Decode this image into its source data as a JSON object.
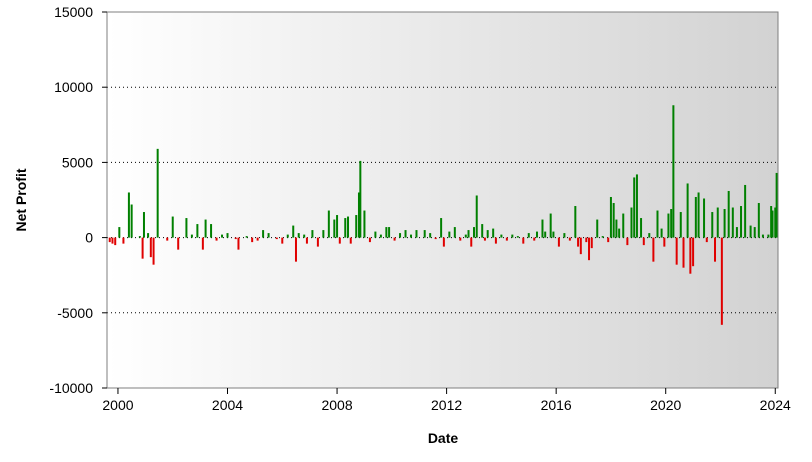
{
  "chart_data": {
    "type": "bar",
    "title": "",
    "xlabel": "Date",
    "ylabel": "Net Profit",
    "xlim": [
      1999.6,
      2024.1
    ],
    "ylim": [
      -10000,
      15000
    ],
    "y_ticks": [
      -10000,
      -5000,
      0,
      5000,
      10000,
      15000
    ],
    "x_ticks": [
      2000,
      2004,
      2008,
      2012,
      2016,
      2020,
      2024
    ],
    "y_tick_labels": [
      "-10000",
      "-5000",
      "0",
      "5000",
      "10000",
      "15000"
    ],
    "x_tick_labels": [
      "2000",
      "2004",
      "2008",
      "2012",
      "2016",
      "2020",
      "2024"
    ],
    "grid": "horizontal dotted",
    "colors": {
      "positive": "#008000",
      "negative": "#e00000"
    },
    "series": [
      {
        "points": [
          [
            1999.7,
            -300
          ],
          [
            1999.8,
            -400
          ],
          [
            1999.9,
            -500
          ],
          [
            2000.05,
            700
          ],
          [
            2000.2,
            -400
          ],
          [
            2000.4,
            3000
          ],
          [
            2000.5,
            2200
          ],
          [
            2000.8,
            100
          ],
          [
            2000.9,
            -1400
          ],
          [
            2000.95,
            1700
          ],
          [
            2001.1,
            300
          ],
          [
            2001.2,
            -1300
          ],
          [
            2001.3,
            -1800
          ],
          [
            2001.45,
            5900
          ],
          [
            2001.8,
            -200
          ],
          [
            2002.0,
            1400
          ],
          [
            2002.2,
            -800
          ],
          [
            2002.5,
            1300
          ],
          [
            2002.7,
            200
          ],
          [
            2002.9,
            900
          ],
          [
            2003.1,
            -800
          ],
          [
            2003.2,
            1200
          ],
          [
            2003.4,
            900
          ],
          [
            2003.6,
            -200
          ],
          [
            2003.8,
            200
          ],
          [
            2004.0,
            300
          ],
          [
            2004.3,
            -100
          ],
          [
            2004.4,
            -800
          ],
          [
            2004.7,
            100
          ],
          [
            2004.9,
            -300
          ],
          [
            2005.1,
            -200
          ],
          [
            2005.3,
            500
          ],
          [
            2005.5,
            300
          ],
          [
            2005.8,
            -100
          ],
          [
            2006.0,
            -400
          ],
          [
            2006.2,
            200
          ],
          [
            2006.4,
            800
          ],
          [
            2006.5,
            -1600
          ],
          [
            2006.6,
            300
          ],
          [
            2006.8,
            200
          ],
          [
            2006.9,
            -400
          ],
          [
            2007.1,
            500
          ],
          [
            2007.3,
            -600
          ],
          [
            2007.5,
            500
          ],
          [
            2007.7,
            1800
          ],
          [
            2007.9,
            1200
          ],
          [
            2008.0,
            1500
          ],
          [
            2008.1,
            -400
          ],
          [
            2008.3,
            1300
          ],
          [
            2008.4,
            1400
          ],
          [
            2008.5,
            -400
          ],
          [
            2008.7,
            1500
          ],
          [
            2008.8,
            3000
          ],
          [
            2008.85,
            5100
          ],
          [
            2009.0,
            1800
          ],
          [
            2009.2,
            -300
          ],
          [
            2009.4,
            400
          ],
          [
            2009.6,
            200
          ],
          [
            2009.8,
            700
          ],
          [
            2009.9,
            700
          ],
          [
            2010.1,
            -200
          ],
          [
            2010.3,
            300
          ],
          [
            2010.5,
            500
          ],
          [
            2010.7,
            200
          ],
          [
            2010.9,
            500
          ],
          [
            2011.2,
            500
          ],
          [
            2011.4,
            300
          ],
          [
            2011.6,
            -100
          ],
          [
            2011.8,
            1300
          ],
          [
            2011.9,
            -600
          ],
          [
            2012.1,
            400
          ],
          [
            2012.3,
            700
          ],
          [
            2012.5,
            -200
          ],
          [
            2012.7,
            200
          ],
          [
            2012.8,
            500
          ],
          [
            2012.9,
            -600
          ],
          [
            2013.0,
            700
          ],
          [
            2013.1,
            2800
          ],
          [
            2013.3,
            900
          ],
          [
            2013.4,
            -200
          ],
          [
            2013.5,
            500
          ],
          [
            2013.7,
            600
          ],
          [
            2013.8,
            -400
          ],
          [
            2014.0,
            200
          ],
          [
            2014.2,
            -200
          ],
          [
            2014.4,
            200
          ],
          [
            2014.6,
            100
          ],
          [
            2014.8,
            -400
          ],
          [
            2015.0,
            300
          ],
          [
            2015.2,
            -200
          ],
          [
            2015.3,
            400
          ],
          [
            2015.5,
            1200
          ],
          [
            2015.6,
            400
          ],
          [
            2015.8,
            1600
          ],
          [
            2015.9,
            400
          ],
          [
            2016.1,
            -600
          ],
          [
            2016.3,
            300
          ],
          [
            2016.5,
            -200
          ],
          [
            2016.7,
            2100
          ],
          [
            2016.8,
            -600
          ],
          [
            2016.9,
            -1100
          ],
          [
            2017.1,
            -300
          ],
          [
            2017.2,
            -1500
          ],
          [
            2017.3,
            -700
          ],
          [
            2017.5,
            1200
          ],
          [
            2017.7,
            100
          ],
          [
            2017.9,
            -300
          ],
          [
            2018.0,
            2700
          ],
          [
            2018.1,
            2300
          ],
          [
            2018.2,
            1200
          ],
          [
            2018.3,
            600
          ],
          [
            2018.45,
            1600
          ],
          [
            2018.6,
            -500
          ],
          [
            2018.75,
            2000
          ],
          [
            2018.85,
            4000
          ],
          [
            2018.95,
            4200
          ],
          [
            2019.1,
            1300
          ],
          [
            2019.2,
            -500
          ],
          [
            2019.4,
            300
          ],
          [
            2019.55,
            -1600
          ],
          [
            2019.7,
            1800
          ],
          [
            2019.85,
            600
          ],
          [
            2019.95,
            -600
          ],
          [
            2020.1,
            1600
          ],
          [
            2020.2,
            1900
          ],
          [
            2020.28,
            8800
          ],
          [
            2020.4,
            -1800
          ],
          [
            2020.55,
            1700
          ],
          [
            2020.65,
            -2000
          ],
          [
            2020.8,
            3600
          ],
          [
            2020.9,
            -2400
          ],
          [
            2021.0,
            -1900
          ],
          [
            2021.1,
            2700
          ],
          [
            2021.2,
            3000
          ],
          [
            2021.4,
            2600
          ],
          [
            2021.5,
            -300
          ],
          [
            2021.7,
            1700
          ],
          [
            2021.8,
            -1600
          ],
          [
            2021.9,
            2000
          ],
          [
            2022.05,
            -5800
          ],
          [
            2022.15,
            1900
          ],
          [
            2022.3,
            3100
          ],
          [
            2022.45,
            2000
          ],
          [
            2022.6,
            700
          ],
          [
            2022.75,
            2100
          ],
          [
            2022.9,
            3500
          ],
          [
            2023.1,
            800
          ],
          [
            2023.25,
            700
          ],
          [
            2023.4,
            2300
          ],
          [
            2023.55,
            200
          ],
          [
            2023.75,
            200
          ],
          [
            2023.85,
            2100
          ],
          [
            2023.9,
            1800
          ],
          [
            2024.0,
            2000
          ],
          [
            2024.05,
            4300
          ]
        ]
      }
    ]
  }
}
